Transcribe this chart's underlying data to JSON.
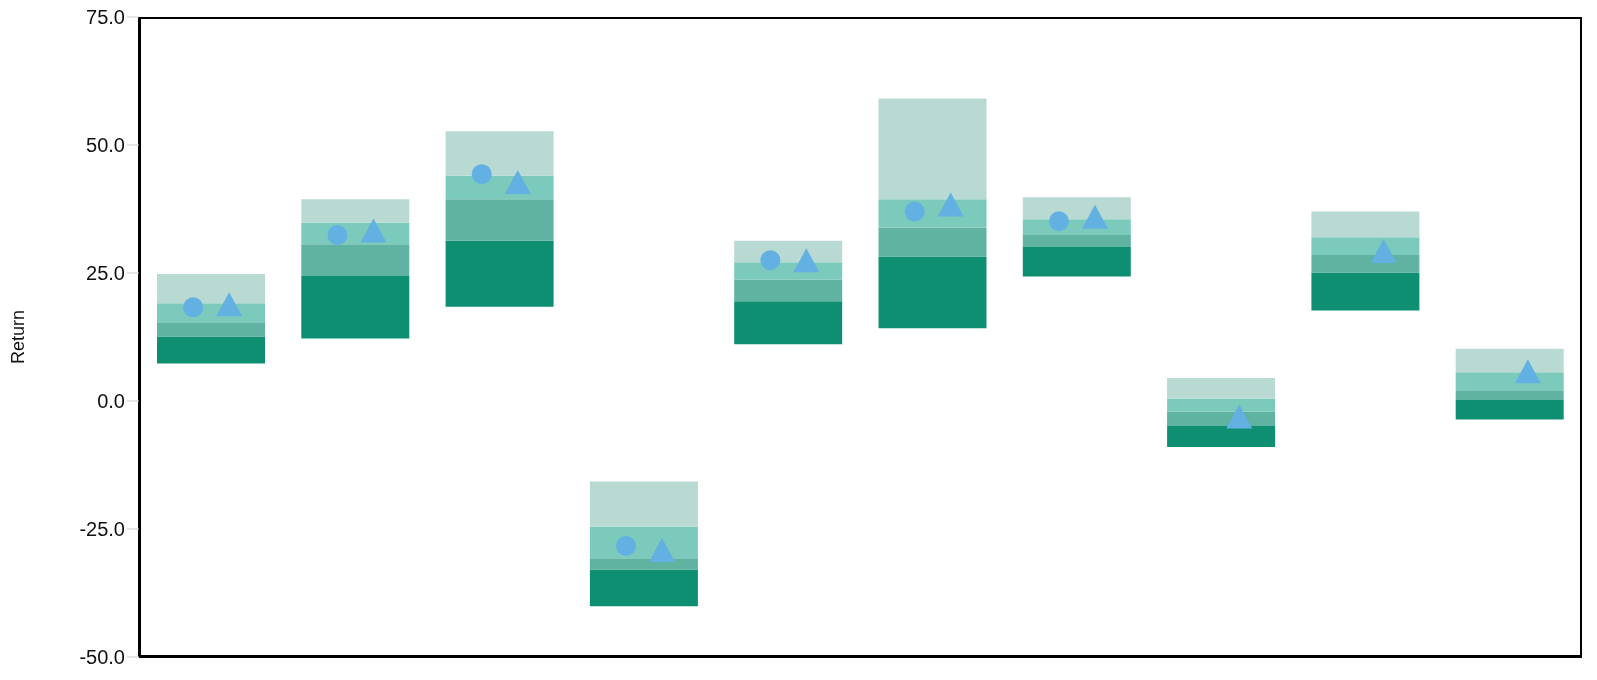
{
  "chart_data": {
    "type": "bar",
    "ylabel": "Return",
    "categories": [
      null,
      null,
      null,
      null,
      null,
      null,
      null,
      null,
      null,
      null
    ],
    "series": [
      {
        "color": "#0e8f72",
        "base": [
          7.3,
          12.2,
          18.4,
          -40.1,
          11.1,
          14.2,
          24.3,
          -9.0,
          17.7,
          -3.6
        ],
        "values": [
          5.3,
          12.2,
          12.9,
          7.2,
          8.4,
          14.0,
          5.8,
          4.1,
          7.4,
          3.8
        ]
      },
      {
        "color": "#5fb3a0",
        "base": [
          12.6,
          24.4,
          31.3,
          -32.9,
          19.5,
          28.2,
          30.1,
          -4.9,
          25.1,
          0.2
        ],
        "values": [
          2.8,
          6.2,
          8.1,
          2.2,
          4.2,
          5.7,
          2.3,
          2.8,
          3.4,
          1.9
        ]
      },
      {
        "color": "#7ccabb",
        "base": [
          15.4,
          30.6,
          39.4,
          -30.7,
          23.7,
          33.9,
          32.4,
          -2.1,
          28.5,
          2.1
        ],
        "values": [
          3.7,
          4.2,
          4.6,
          6.2,
          3.4,
          5.5,
          3.1,
          2.6,
          3.5,
          3.5
        ]
      },
      {
        "color": "#b9d9d3",
        "base": [
          19.1,
          34.8,
          44.0,
          -24.5,
          27.1,
          39.4,
          35.5,
          0.5,
          32.0,
          5.6
        ],
        "values": [
          5.7,
          4.6,
          8.7,
          8.8,
          4.2,
          19.7,
          4.3,
          4.0,
          5.0,
          4.6
        ]
      },
      {
        "type": "scatter",
        "marker": "circle",
        "color": "#62b1e2",
        "values": [
          18.3,
          32.4,
          44.3,
          -28.3,
          27.5,
          37.0,
          35.1,
          null,
          null,
          null
        ]
      },
      {
        "type": "scatter",
        "marker": "triangle",
        "color": "#62b1e2",
        "values": [
          18.5,
          32.9,
          42.4,
          -29.5,
          27.1,
          38.0,
          35.6,
          -3.4,
          28.9,
          5.4
        ]
      }
    ],
    "ylim": [
      -50,
      75
    ],
    "yticks": [
      {
        "value": -50,
        "label": "-50.0"
      },
      {
        "value": -25,
        "label": "-25.0"
      },
      {
        "value": 0,
        "label": "0.0"
      },
      {
        "value": 25,
        "label": "25.0"
      },
      {
        "value": 50,
        "label": "50.0"
      },
      {
        "value": 75,
        "label": "75.0"
      }
    ]
  }
}
